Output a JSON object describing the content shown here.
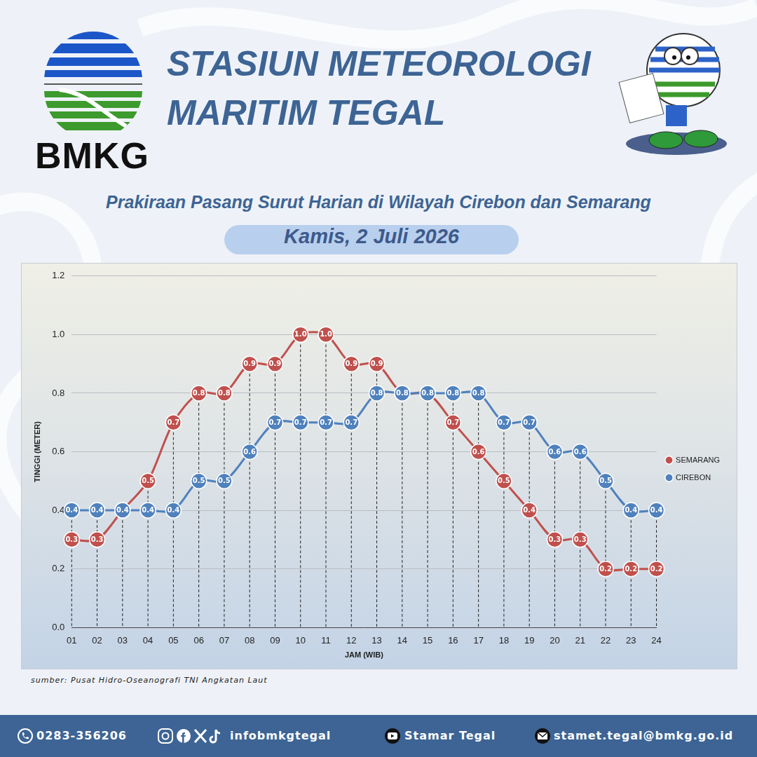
{
  "header": {
    "logo_text": "BMKG",
    "title": [
      "STASIUN METEOROLOGI",
      "MARITIM TEGAL"
    ],
    "subtitle": "Prakiraan Pasang Surut Harian di Wilayah Cirebon dan Semarang",
    "date": "Kamis, 2 Juli 2026"
  },
  "chart_data": {
    "type": "line",
    "x_label": "JAM (WIB)",
    "y_label": "TINGGI (METER)",
    "categories": [
      "01",
      "02",
      "03",
      "04",
      "05",
      "06",
      "07",
      "08",
      "09",
      "10",
      "11",
      "12",
      "13",
      "14",
      "15",
      "16",
      "17",
      "18",
      "19",
      "20",
      "21",
      "22",
      "23",
      "24"
    ],
    "series": [
      {
        "name": "SEMARANG",
        "color": "#c0504d",
        "marker": "circle",
        "values": [
          0.3,
          0.3,
          0.4,
          0.5,
          0.7,
          0.8,
          0.8,
          0.9,
          0.9,
          1.0,
          1.0,
          0.9,
          0.9,
          0.8,
          0.8,
          0.7,
          0.6,
          0.5,
          0.4,
          0.3,
          0.3,
          0.2,
          0.2,
          0.2
        ],
        "value_labels": [
          "0.3",
          "0.3",
          "0.4",
          "0.5",
          "0.7",
          "0.8",
          "0.8",
          "0.9",
          "0.9",
          "1.0",
          "1.0",
          "0.9",
          "0.9",
          "0.8",
          "0.8",
          "0.7",
          "0.6",
          "0.5",
          "0.4",
          "0.3",
          "0.3",
          "0.2",
          "0.2",
          "0.2"
        ]
      },
      {
        "name": "CIREBON",
        "color": "#4f81bd",
        "marker": "circle",
        "values": [
          0.4,
          0.4,
          0.4,
          0.4,
          0.4,
          0.5,
          0.5,
          0.6,
          0.7,
          0.7,
          0.7,
          0.7,
          0.8,
          0.8,
          0.8,
          0.8,
          0.8,
          0.7,
          0.7,
          0.6,
          0.6,
          0.5,
          0.4,
          0.4
        ],
        "value_labels": [
          "0.4",
          "0.4",
          "0.4",
          "0.4",
          "0.4",
          "0.5",
          "0.5",
          "0.6",
          "0.7",
          "0.7",
          "0.7",
          "0.7",
          "0.8",
          "0.8",
          "0.8",
          "0.8",
          "0.8",
          "0.7",
          "0.7",
          "0.6",
          "0.6",
          "0.5",
          "0.4",
          "0.4"
        ]
      }
    ],
    "ylim": [
      0,
      1.2
    ],
    "yticks": [
      {
        "value": 0,
        "label": "0.0"
      },
      0.2,
      0.4,
      0.6,
      0.8,
      {
        "value": 1,
        "label": "1.0"
      },
      1.2
    ],
    "grid": true,
    "legend": "right",
    "data_labels": true
  },
  "source": "sumber: Pusat Hidro-Oseanografi TNI Angkatan Laut",
  "footer": {
    "phone": "0283-356206",
    "social": "infobmkgtegal",
    "youtube": "Stamar Tegal",
    "email": "stamet.tegal@bmkg.go.id"
  }
}
